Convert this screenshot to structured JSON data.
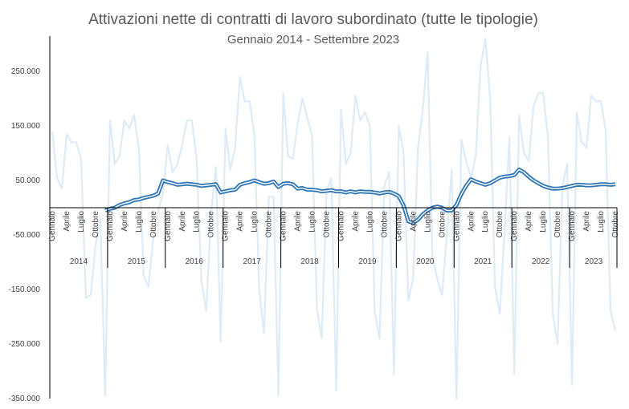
{
  "chart_data": {
    "type": "line",
    "title": "Attivazioni nette di contratti di lavoro subordinato (tutte le tipologie)",
    "subtitle": "Gennaio 2014 - Settembre 2023",
    "ylim": [
      -350000,
      300000
    ],
    "yticks": [
      250000,
      150000,
      50000,
      -50000,
      -150000,
      -250000,
      -350000
    ],
    "ytick_labels": [
      "250.000",
      "150.000",
      "50.000",
      "-50.000",
      "-150.000",
      "-250.000",
      "-350.000"
    ],
    "grid": false,
    "legend": "none",
    "month_labels": [
      "Gennaio",
      "Aprile",
      "Luglio",
      "Ottobre"
    ],
    "years": [
      "2014",
      "2015",
      "2016",
      "2017",
      "2018",
      "2019",
      "2020",
      "2021",
      "2022",
      "2023"
    ],
    "colors": {
      "monthly": "#deebf7",
      "trend": "#2e75b6",
      "trend_inner": "#ffffff",
      "axis": "#000000",
      "text": "#595959"
    },
    "series": [
      {
        "values": [
          140000,
          55000,
          35000,
          135000,
          120000,
          120000,
          90000,
          -165000,
          -160000,
          -70000,
          -20000,
          -345000,
          160000,
          80000,
          95000,
          160000,
          145000,
          170000,
          110000,
          -125000,
          -145000,
          -55000,
          -5000,
          25000,
          115000,
          65000,
          80000,
          115000,
          160000,
          160000,
          90000,
          -135000,
          -190000,
          -10000,
          75000,
          -245000,
          145000,
          70000,
          110000,
          240000,
          195000,
          195000,
          135000,
          -150000,
          -230000,
          20000,
          20000,
          -345000,
          210000,
          95000,
          90000,
          155000,
          200000,
          165000,
          130000,
          -185000,
          -240000,
          30000,
          55000,
          -335000,
          180000,
          80000,
          100000,
          205000,
          160000,
          175000,
          150000,
          -190000,
          -240000,
          40000,
          65000,
          -305000,
          150000,
          100000,
          -170000,
          -130000,
          110000,
          180000,
          285000,
          -90000,
          -130000,
          -160000,
          -50000,
          70000,
          -350000,
          125000,
          85000,
          55000,
          95000,
          260000,
          310000,
          200000,
          -145000,
          -195000,
          -40000,
          130000,
          -305000,
          170000,
          100000,
          85000,
          185000,
          210000,
          210000,
          130000,
          -195000,
          -250000,
          40000,
          80000,
          -325000,
          175000,
          120000,
          110000,
          205000,
          195000,
          195000,
          140000,
          -190000,
          -225000
        ]
      },
      {
        "values": [
          null,
          null,
          null,
          null,
          null,
          null,
          null,
          null,
          null,
          null,
          null,
          -5000,
          -2000,
          0,
          5000,
          8000,
          10000,
          14000,
          15000,
          18000,
          20000,
          22000,
          26000,
          50000,
          47000,
          45000,
          42000,
          43000,
          44000,
          43000,
          42000,
          40000,
          41000,
          42000,
          43000,
          28000,
          30000,
          32000,
          33000,
          42000,
          45000,
          47000,
          50000,
          47000,
          44000,
          45000,
          48000,
          38000,
          44000,
          45000,
          43000,
          35000,
          36000,
          33000,
          33000,
          32000,
          30000,
          31000,
          32000,
          30000,
          30000,
          28000,
          30000,
          28000,
          30000,
          29000,
          29000,
          28000,
          26000,
          28000,
          29000,
          26000,
          21000,
          4000,
          -25000,
          -28000,
          -22000,
          -12000,
          -5000,
          0,
          2000,
          0,
          -5000,
          -5000,
          5000,
          25000,
          40000,
          52000,
          48000,
          45000,
          42000,
          45000,
          50000,
          55000,
          57000,
          58000,
          60000,
          70000,
          65000,
          57000,
          50000,
          45000,
          40000,
          37000,
          35000,
          35000,
          36000,
          38000,
          40000,
          42000,
          42000,
          41000,
          41000,
          42000,
          43000,
          43000,
          42000,
          43000
        ]
      }
    ]
  }
}
